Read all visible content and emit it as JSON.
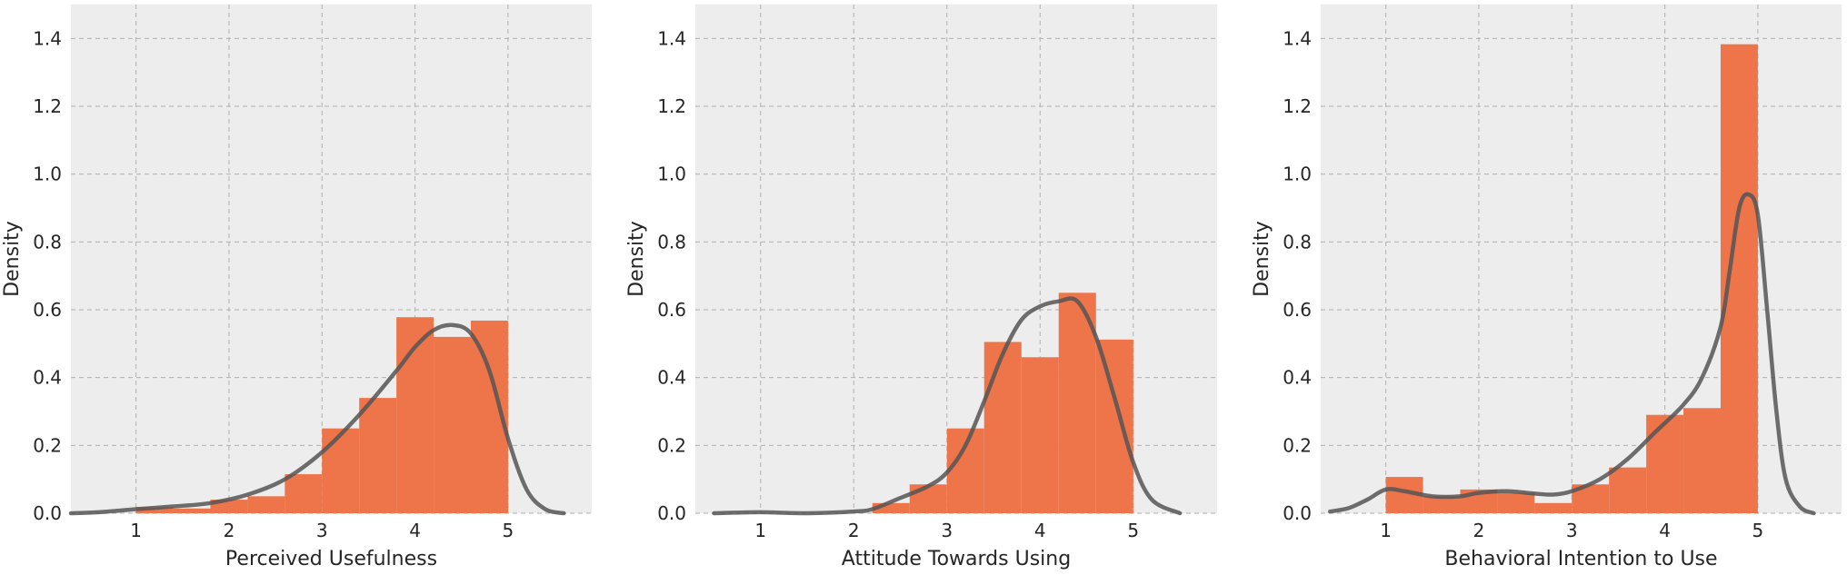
{
  "colors": {
    "plot_background": "#ecedec",
    "bar": "#ee7449",
    "kde_line": "#555555",
    "grid": "#b0b0b0",
    "text": "#262626"
  },
  "chart_data": [
    {
      "type": "bar",
      "subtype": "histogram_with_kde",
      "title": "",
      "xlabel": "Perceived Usefulness",
      "ylabel": "Density",
      "xlim": [
        0.3,
        5.9
      ],
      "ylim": [
        0.0,
        1.5
      ],
      "xticks": [
        1,
        2,
        3,
        4,
        5
      ],
      "yticks": [
        0.0,
        0.2,
        0.4,
        0.6,
        0.8,
        1.0,
        1.2,
        1.4
      ],
      "grid": true,
      "bins": [
        {
          "x0": 1.0,
          "x1": 1.4,
          "value": 0.018
        },
        {
          "x0": 1.4,
          "x1": 1.8,
          "value": 0.014
        },
        {
          "x0": 1.8,
          "x1": 2.2,
          "value": 0.04
        },
        {
          "x0": 2.2,
          "x1": 2.6,
          "value": 0.05
        },
        {
          "x0": 2.6,
          "x1": 3.0,
          "value": 0.115
        },
        {
          "x0": 3.0,
          "x1": 3.4,
          "value": 0.25
        },
        {
          "x0": 3.4,
          "x1": 3.8,
          "value": 0.34
        },
        {
          "x0": 3.8,
          "x1": 4.2,
          "value": 0.578
        },
        {
          "x0": 4.2,
          "x1": 4.6,
          "value": 0.52
        },
        {
          "x0": 4.6,
          "x1": 5.0,
          "value": 0.568
        }
      ],
      "kde": {
        "x": [
          0.3,
          0.6,
          1.0,
          1.4,
          1.8,
          2.2,
          2.6,
          3.0,
          3.4,
          3.8,
          4.0,
          4.2,
          4.4,
          4.6,
          4.8,
          5.0,
          5.2,
          5.4,
          5.6
        ],
        "y": [
          0.0,
          0.003,
          0.012,
          0.02,
          0.03,
          0.055,
          0.1,
          0.18,
          0.29,
          0.42,
          0.49,
          0.54,
          0.555,
          0.53,
          0.42,
          0.22,
          0.07,
          0.012,
          0.0
        ]
      }
    },
    {
      "type": "bar",
      "subtype": "histogram_with_kde",
      "title": "",
      "xlabel": "Attitude Towards Using",
      "ylabel": "Density",
      "xlim": [
        0.3,
        5.9
      ],
      "ylim": [
        0.0,
        1.5
      ],
      "xticks": [
        1,
        2,
        3,
        4,
        5
      ],
      "yticks": [
        0.0,
        0.2,
        0.4,
        0.6,
        0.8,
        1.0,
        1.2,
        1.4
      ],
      "grid": true,
      "bins": [
        {
          "x0": 2.2,
          "x1": 2.6,
          "value": 0.03
        },
        {
          "x0": 2.6,
          "x1": 3.0,
          "value": 0.085
        },
        {
          "x0": 3.0,
          "x1": 3.4,
          "value": 0.25
        },
        {
          "x0": 3.4,
          "x1": 3.8,
          "value": 0.505
        },
        {
          "x0": 3.8,
          "x1": 4.2,
          "value": 0.46
        },
        {
          "x0": 4.2,
          "x1": 4.6,
          "value": 0.65
        },
        {
          "x0": 4.6,
          "x1": 5.0,
          "value": 0.512
        }
      ],
      "kde": {
        "x": [
          0.5,
          1.0,
          1.5,
          2.0,
          2.2,
          2.5,
          2.8,
          3.0,
          3.2,
          3.4,
          3.6,
          3.8,
          4.0,
          4.2,
          4.4,
          4.6,
          4.8,
          5.0,
          5.2,
          5.5
        ],
        "y": [
          0.0,
          0.003,
          0.0,
          0.005,
          0.012,
          0.045,
          0.08,
          0.12,
          0.2,
          0.33,
          0.47,
          0.57,
          0.61,
          0.625,
          0.625,
          0.52,
          0.34,
          0.15,
          0.04,
          0.0
        ]
      }
    },
    {
      "type": "bar",
      "subtype": "histogram_with_kde",
      "title": "",
      "xlabel": "Behavioral Intention to Use",
      "ylabel": "Density",
      "xlim": [
        0.3,
        5.9
      ],
      "ylim": [
        0.0,
        1.5
      ],
      "xticks": [
        1,
        2,
        3,
        4,
        5
      ],
      "yticks": [
        0.0,
        0.2,
        0.4,
        0.6,
        0.8,
        1.0,
        1.2,
        1.4
      ],
      "grid": true,
      "bins": [
        {
          "x0": 1.0,
          "x1": 1.4,
          "value": 0.107
        },
        {
          "x0": 1.4,
          "x1": 1.8,
          "value": 0.05
        },
        {
          "x0": 1.8,
          "x1": 2.2,
          "value": 0.07
        },
        {
          "x0": 2.2,
          "x1": 2.6,
          "value": 0.06
        },
        {
          "x0": 2.6,
          "x1": 3.0,
          "value": 0.03
        },
        {
          "x0": 3.0,
          "x1": 3.4,
          "value": 0.085
        },
        {
          "x0": 3.4,
          "x1": 3.8,
          "value": 0.135
        },
        {
          "x0": 3.8,
          "x1": 4.2,
          "value": 0.29
        },
        {
          "x0": 4.2,
          "x1": 4.6,
          "value": 0.31
        },
        {
          "x0": 4.6,
          "x1": 5.0,
          "value": 1.383
        }
      ],
      "kde": {
        "x": [
          0.4,
          0.6,
          0.8,
          1.0,
          1.2,
          1.5,
          1.8,
          2.0,
          2.3,
          2.6,
          2.8,
          3.0,
          3.3,
          3.6,
          3.9,
          4.2,
          4.4,
          4.6,
          4.7,
          4.8,
          4.9,
          5.0,
          5.1,
          5.2,
          5.3,
          5.45,
          5.6
        ],
        "y": [
          0.005,
          0.015,
          0.04,
          0.07,
          0.065,
          0.05,
          0.05,
          0.06,
          0.065,
          0.058,
          0.055,
          0.065,
          0.1,
          0.16,
          0.24,
          0.32,
          0.4,
          0.55,
          0.72,
          0.9,
          0.94,
          0.88,
          0.6,
          0.3,
          0.1,
          0.02,
          0.0
        ]
      }
    }
  ]
}
